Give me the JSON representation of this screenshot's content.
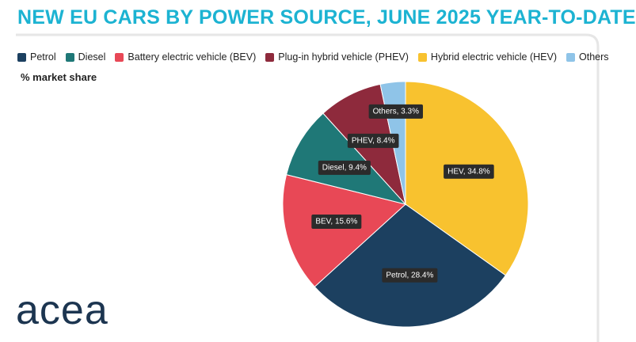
{
  "logo": "acea",
  "chart_data": {
    "type": "pie",
    "title": "NEW EU CARS BY POWER SOURCE, JUNE 2025 YEAR-TO-DATE",
    "subtitle": "% market share",
    "categories": [
      "Hybrid electric vehicle (HEV)",
      "Petrol",
      "Battery electric vehicle (BEV)",
      "Diesel",
      "Plug-in hybrid vehicle (PHEV)",
      "Others"
    ],
    "values": [
      34.8,
      28.4,
      15.6,
      9.4,
      8.4,
      3.3
    ],
    "value_labels": [
      "HEV, 34.8%",
      "Petrol, 28.4%",
      "BEV, 15.6%",
      "Diesel, 9.4%",
      "PHEV, 8.4%",
      "Others, 3.3%"
    ],
    "colors": [
      "#f8c22f",
      "#1c4060",
      "#e84856",
      "#1f7877",
      "#8e2a3c",
      "#8fc4e8"
    ]
  }
}
